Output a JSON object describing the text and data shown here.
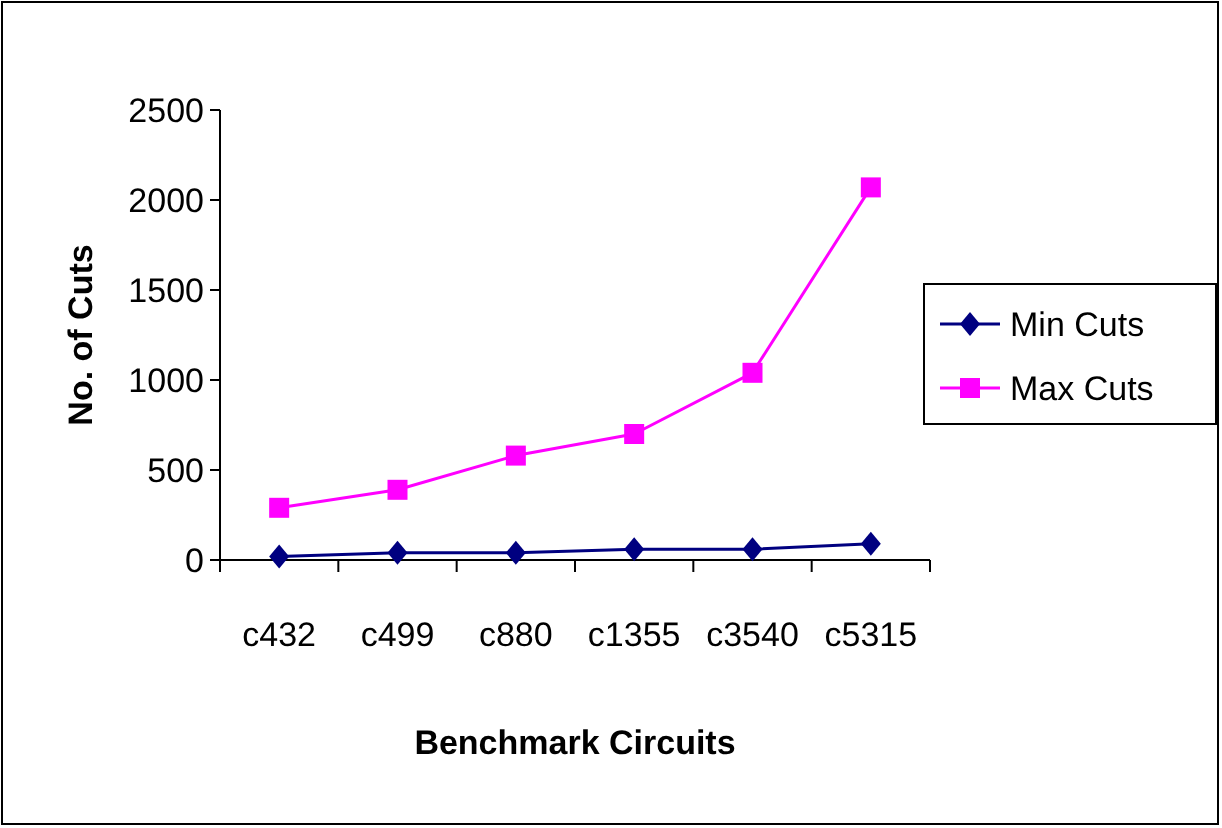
{
  "chart_data": {
    "type": "line",
    "xlabel": "Benchmark Circuits",
    "ylabel": "No. of Cuts",
    "categories": [
      "c432",
      "c499",
      "c880",
      "c1355",
      "c3540",
      "c5315"
    ],
    "series": [
      {
        "name": "Min Cuts",
        "color": "#000080",
        "marker": "diamond",
        "values": [
          20,
          40,
          40,
          60,
          60,
          90
        ]
      },
      {
        "name": "Max Cuts",
        "color": "#ff00ff",
        "marker": "square",
        "values": [
          290,
          390,
          580,
          700,
          1040,
          2070
        ]
      }
    ],
    "ylim": [
      0,
      2500
    ],
    "yticks": [
      0,
      500,
      1000,
      1500,
      2000,
      2500
    ],
    "grid": false,
    "legend": "right"
  }
}
